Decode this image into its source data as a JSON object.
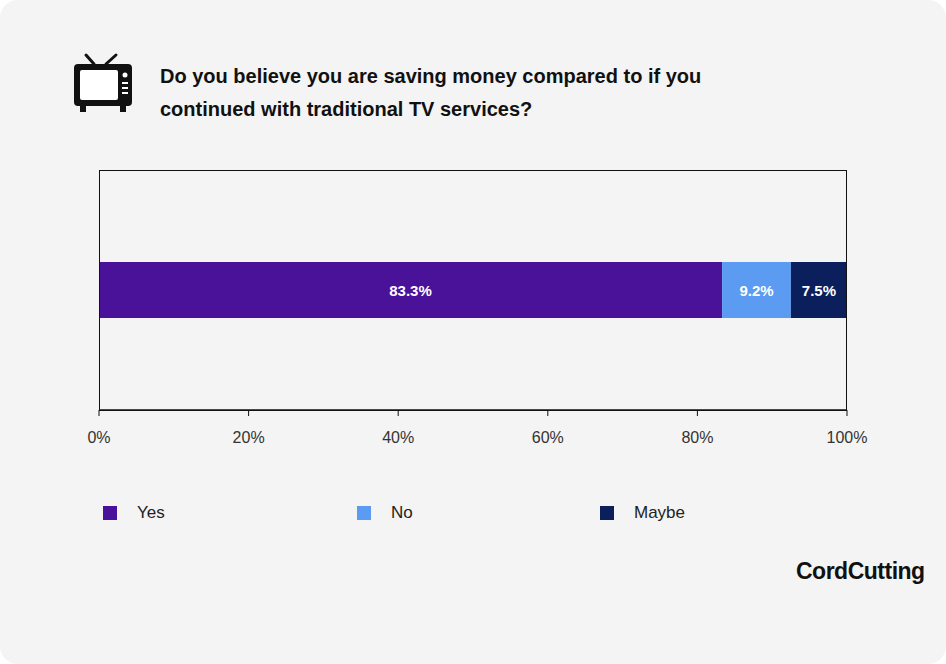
{
  "chart_data": {
    "type": "bar",
    "title": "Do you believe you are saving money compared to if you continued with traditional TV services?",
    "orientation": "horizontal",
    "stacked": true,
    "data_labels": true,
    "grid": false,
    "legend": "bottom",
    "xlim": [
      0,
      100
    ],
    "xticks": [
      {
        "value": 0,
        "label": "0%"
      },
      {
        "value": 20,
        "label": "20%"
      },
      {
        "value": 40,
        "label": "40%"
      },
      {
        "value": 60,
        "label": "60%"
      },
      {
        "value": 80,
        "label": "80%"
      },
      {
        "value": 100,
        "label": "100%"
      }
    ],
    "series": [
      {
        "name": "Yes",
        "color": "#4a1199",
        "values": [
          83.3
        ],
        "value_labels": [
          "83.3%"
        ]
      },
      {
        "name": "No",
        "color": "#5b9cf2",
        "values": [
          9.2
        ],
        "value_labels": [
          "9.2%"
        ]
      },
      {
        "name": "Maybe",
        "color": "#0b1f5c",
        "values": [
          7.5
        ],
        "value_labels": [
          "7.5%"
        ]
      }
    ],
    "annotation": "CordCutting"
  }
}
